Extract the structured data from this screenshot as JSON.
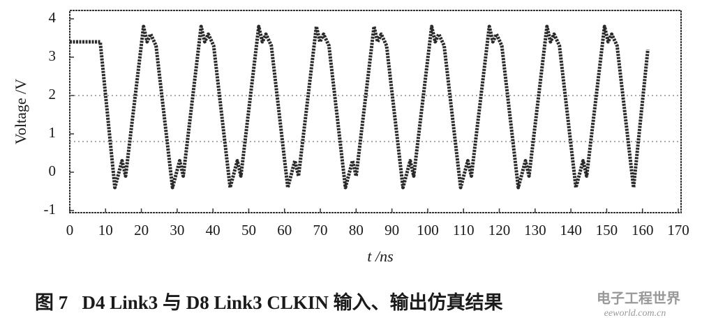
{
  "chart_data": {
    "type": "line",
    "x_label": "t /ns",
    "y_label": "Voltage /V",
    "caption": "图 7   D4 Link3 与 D8 Link3 CLKIN 输入、输出仿真结果",
    "watermark": "电子工程世界",
    "watermark_url": "eeworld.com.cn",
    "xlim": [
      0,
      170
    ],
    "ylim": [
      -1,
      4
    ],
    "xticks": [
      0,
      10,
      20,
      30,
      40,
      50,
      60,
      70,
      80,
      90,
      100,
      110,
      120,
      130,
      140,
      150,
      160,
      170
    ],
    "yticks": [
      -1,
      0,
      1,
      2,
      3,
      4
    ],
    "reference_lines": [
      2.0,
      0.8
    ],
    "series": [
      {
        "color": "#2a2a2a",
        "x": [
          0,
          8.5,
          12.6,
          14.6,
          15.6,
          20.6,
          21.6,
          22.6,
          24.1,
          28.7,
          30.7,
          31.7,
          36.7,
          37.7,
          38.7,
          40.2,
          44.8,
          46.8,
          47.8,
          52.8,
          53.8,
          54.8,
          56.3,
          60.9,
          62.9,
          63.9,
          68.9,
          69.9,
          70.9,
          72.4,
          77.0,
          79.0,
          80.0,
          85.0,
          86.0,
          87.0,
          88.5,
          93.1,
          95.1,
          96.1,
          101.1,
          102.1,
          103.1,
          104.6,
          109.2,
          111.2,
          112.2,
          117.2,
          118.2,
          119.2,
          120.7,
          125.3,
          127.3,
          128.3,
          133.3,
          134.3,
          135.3,
          136.8,
          141.4,
          143.4,
          144.4,
          149.4,
          150.4,
          151.4,
          152.9,
          157.5,
          161.5
        ],
        "values": [
          3.4,
          3.4,
          -0.4,
          0.3,
          -0.1,
          3.8,
          3.4,
          3.6,
          3.3,
          -0.4,
          0.3,
          -0.1,
          3.8,
          3.4,
          3.6,
          3.3,
          -0.4,
          0.3,
          -0.1,
          3.8,
          3.4,
          3.6,
          3.3,
          -0.4,
          0.3,
          -0.1,
          3.8,
          3.4,
          3.6,
          3.3,
          -0.4,
          0.3,
          -0.1,
          3.8,
          3.4,
          3.6,
          3.3,
          -0.4,
          0.3,
          -0.1,
          3.8,
          3.4,
          3.6,
          3.3,
          -0.4,
          0.3,
          -0.1,
          3.8,
          3.4,
          3.6,
          3.3,
          -0.4,
          0.3,
          -0.1,
          3.8,
          3.4,
          3.6,
          3.3,
          -0.4,
          0.3,
          -0.1,
          3.8,
          3.4,
          3.6,
          3.3,
          -0.4,
          3.2
        ]
      }
    ]
  }
}
